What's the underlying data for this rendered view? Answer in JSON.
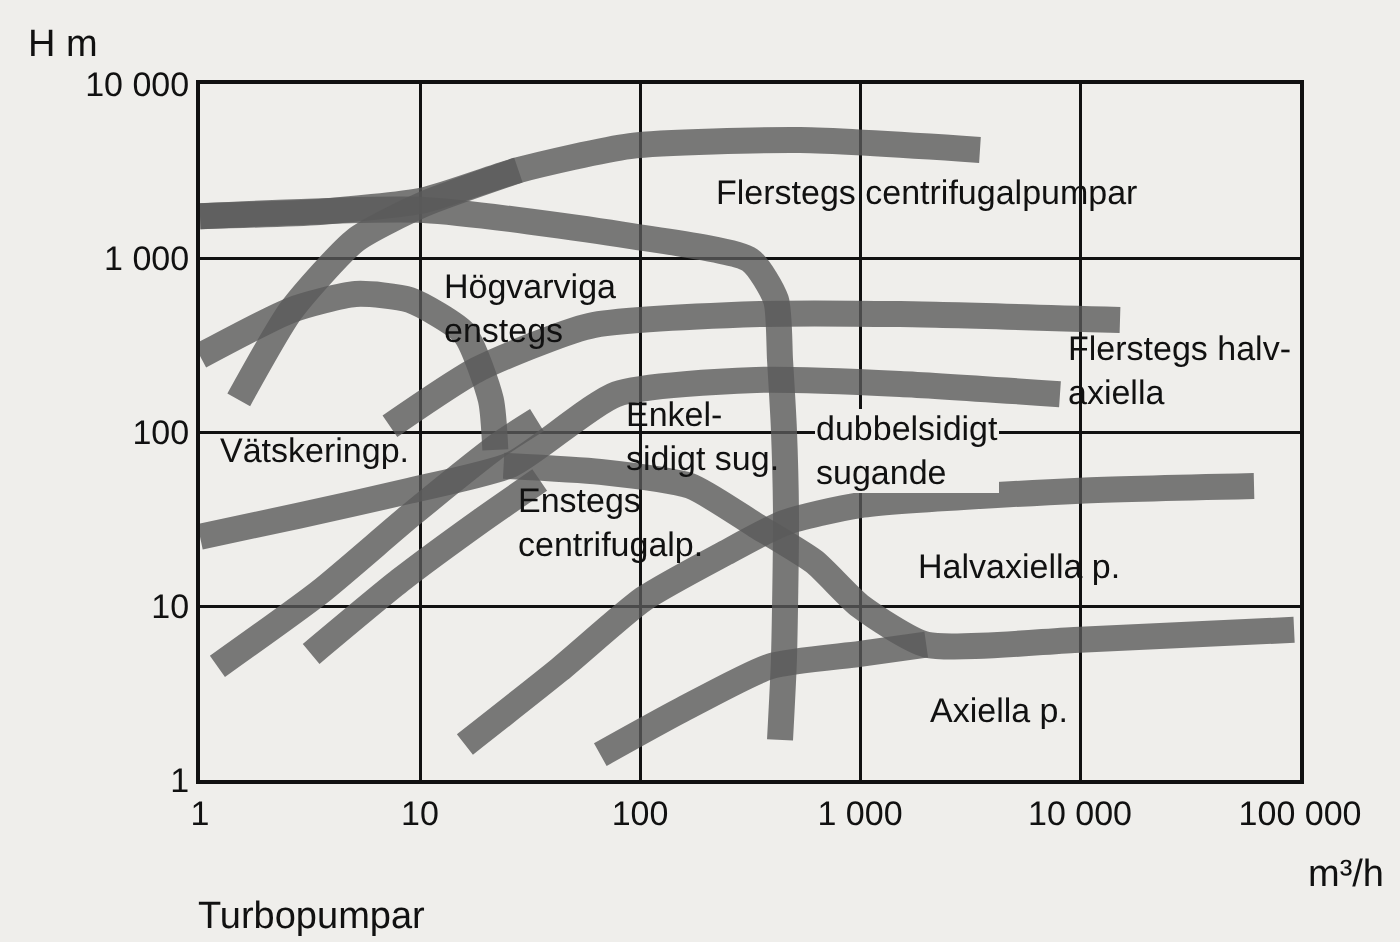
{
  "chart_data": {
    "type": "line",
    "ylabel": "H m",
    "xlabel": "m³/h",
    "log": "xy",
    "grid": true,
    "marker": "none",
    "line_style": "solid",
    "xlim": [
      1,
      100000
    ],
    "ylim": [
      1,
      10000
    ],
    "xticks": [
      1,
      10,
      100,
      {
        "value": 1000,
        "label": "1 000"
      },
      {
        "value": 10000,
        "label": "10 000"
      },
      {
        "value": 100000,
        "label": "100 000"
      }
    ],
    "yticks": [
      1,
      10,
      100,
      {
        "value": 1000,
        "label": "1 000"
      },
      {
        "value": 10000,
        "label": "10 000"
      }
    ],
    "series": [
      {
        "color": "#5a5a5a",
        "x": [
          1,
          3.5,
          10.4,
          28,
          90,
          534,
          3510
        ],
        "values": [
          1740,
          1840,
          2150,
          3200,
          4400,
          4760,
          4180
        ]
      },
      {
        "color": "#5a5a5a",
        "x": [
          1,
          10.4,
          90,
          316,
          415,
          433,
          451,
          461,
          451,
          433
        ],
        "values": [
          1740,
          1890,
          1340,
          975,
          574,
          259,
          103,
          31,
          4.9,
          1.7
        ]
      },
      {
        "color": "#5a5a5a",
        "x": [
          1.5,
          2.6,
          5.1,
          10.4,
          28
        ],
        "values": [
          153,
          502,
          1270,
          2040,
          3200
        ]
      },
      {
        "color": "#5a5a5a",
        "x": [
          1,
          2.6,
          5.1,
          9,
          16,
          21,
          22
        ],
        "values": [
          273,
          502,
          621,
          574,
          366,
          153,
          79
        ]
      },
      {
        "color": "#5a5a5a",
        "x": [
          1,
          2.8,
          9,
          26,
          78,
          337,
          1520,
          8110
        ],
        "values": [
          25,
          33,
          46,
          65,
          165,
          199,
          189,
          165
        ]
      },
      {
        "color": "#5a5a5a",
        "x": [
          7.3,
          18,
          59,
          351,
          1520,
          15200
        ],
        "values": [
          108,
          227,
          407,
          476,
          476,
          440
        ]
      },
      {
        "color": "#5a5a5a",
        "x": [
          1.2,
          3.5,
          9,
          23,
          34
        ],
        "values": [
          4.5,
          12,
          33,
          85,
          117
        ]
      },
      {
        "color": "#5a5a5a",
        "x": [
          3.2,
          8.1,
          19,
          35
        ],
        "values": [
          5.3,
          14,
          31,
          53
        ]
      },
      {
        "color": "#5a5a5a",
        "x": [
          24,
          66,
          169,
          337,
          618,
          1000,
          2000,
          10000,
          94000
        ],
        "values": [
          64,
          59,
          49,
          29,
          18,
          10,
          6.0,
          6.4,
          7.3
        ]
      },
      {
        "color": "#5a5a5a",
        "x": [
          16,
          43,
          104,
          241,
          451,
          1000,
          10000,
          61800
        ],
        "values": [
          1.6,
          4.3,
          11,
          20,
          30,
          38,
          46,
          49
        ]
      },
      {
        "color": "#5a5a5a",
        "x": [
          66,
          152,
          390,
          1000,
          2000
        ],
        "values": [
          1.4,
          2.5,
          4.5,
          5.3,
          6.0
        ]
      }
    ],
    "annotations": [
      "Flerstegs centrifugalpumpar",
      "Högvarviga\nenstegs",
      "Vätskeringp.",
      "Enkel-\nsidigt sug.",
      "dubbelsidigt\nsugande",
      "Enstegs\ncentrifugalp.",
      "Flerstegs halv-\naxiella",
      "Halvaxiella p.",
      "Axiella p.",
      "Turbopumpar"
    ]
  }
}
